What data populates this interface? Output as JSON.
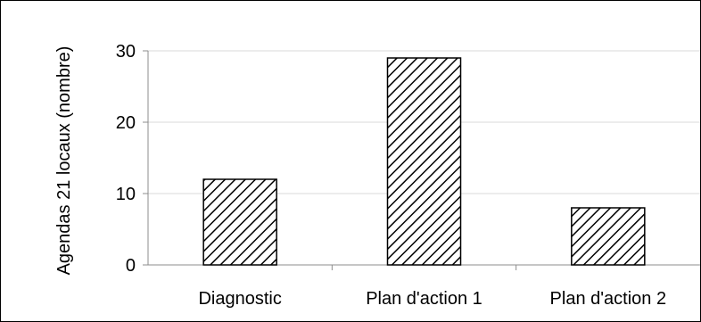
{
  "chart_data": {
    "type": "bar",
    "categories": [
      "Diagnostic",
      "Plan d'action 1",
      "Plan d'action 2"
    ],
    "values": [
      12,
      29,
      8
    ],
    "title": "",
    "xlabel": "",
    "ylabel": "Agendas 21 locaux (nombre)",
    "ylim": [
      0,
      30
    ],
    "yticks": [
      "0",
      "10",
      "20",
      "30"
    ],
    "grid": true,
    "legend": "none",
    "bar_fill": "diagonal-hatch",
    "colors": {
      "bar_stroke": "#000000",
      "grid": "#d9d9d9",
      "axis": "#8c8c8c"
    }
  }
}
